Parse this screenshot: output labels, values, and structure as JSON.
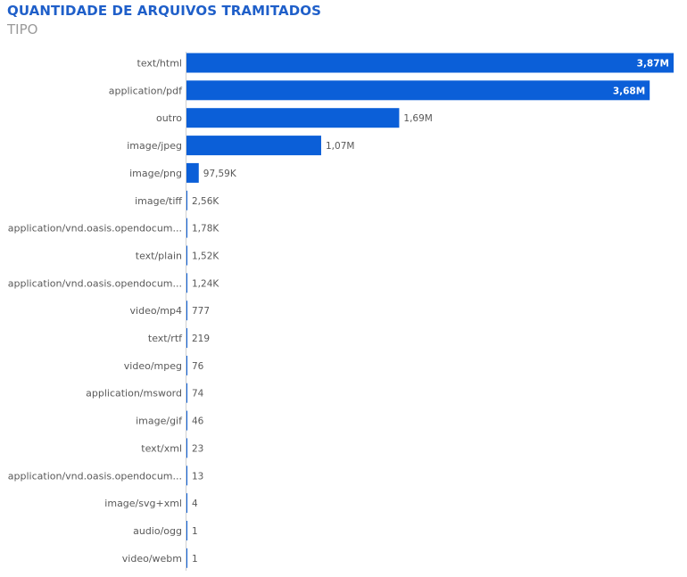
{
  "chart_data": {
    "type": "bar",
    "orientation": "horizontal",
    "title": "QUANTIDADE DE ARQUIVOS TRAMITADOS",
    "subtitle": "TIPO",
    "xlim": [
      0,
      3870000
    ],
    "colors": {
      "bar": "#0b5fd8",
      "title": "#1f5fc9",
      "subtitle": "#9a9a9a"
    },
    "categories": [
      "text/html",
      "application/pdf",
      "outro",
      "image/jpeg",
      "image/png",
      "image/tiff",
      "application/vnd.oasis.opendocum...",
      "text/plain",
      "application/vnd.oasis.opendocum...",
      "video/mp4",
      "text/rtf",
      "video/mpeg",
      "application/msword",
      "image/gif",
      "text/xml",
      "application/vnd.oasis.opendocum...",
      "image/svg+xml",
      "audio/ogg",
      "video/webm"
    ],
    "values": [
      3870000,
      3680000,
      1690000,
      1070000,
      97590,
      2560,
      1780,
      1520,
      1240,
      777,
      219,
      76,
      74,
      46,
      23,
      13,
      4,
      1,
      1
    ],
    "value_labels": [
      "3,87M",
      "3,68M",
      "1,69M",
      "1,07M",
      "97,59K",
      "2,56K",
      "1,78K",
      "1,52K",
      "1,24K",
      "777",
      "219",
      "76",
      "74",
      "46",
      "23",
      "13",
      "4",
      "1",
      "1"
    ]
  }
}
